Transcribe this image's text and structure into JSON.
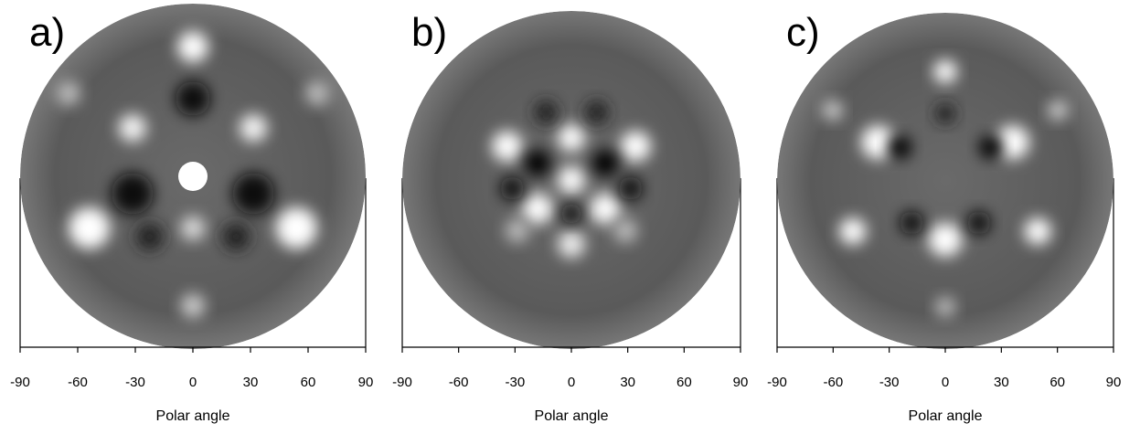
{
  "chart_data": [
    {
      "type": "pattern",
      "title": "a)",
      "xlabel": "Polar angle",
      "xlim": [
        -90,
        90
      ],
      "xticks": [
        -90,
        -60,
        -30,
        0,
        30,
        60,
        90
      ]
    },
    {
      "type": "pattern",
      "title": "b)",
      "xlabel": "Polar angle",
      "xlim": [
        -90,
        90
      ],
      "xticks": [
        -90,
        -60,
        -30,
        0,
        30,
        60,
        90
      ]
    },
    {
      "type": "pattern",
      "title": "c)",
      "xlabel": "Polar angle",
      "xlim": [
        -90,
        90
      ],
      "xticks": [
        -90,
        -60,
        -30,
        0,
        30,
        60,
        90
      ]
    }
  ]
}
